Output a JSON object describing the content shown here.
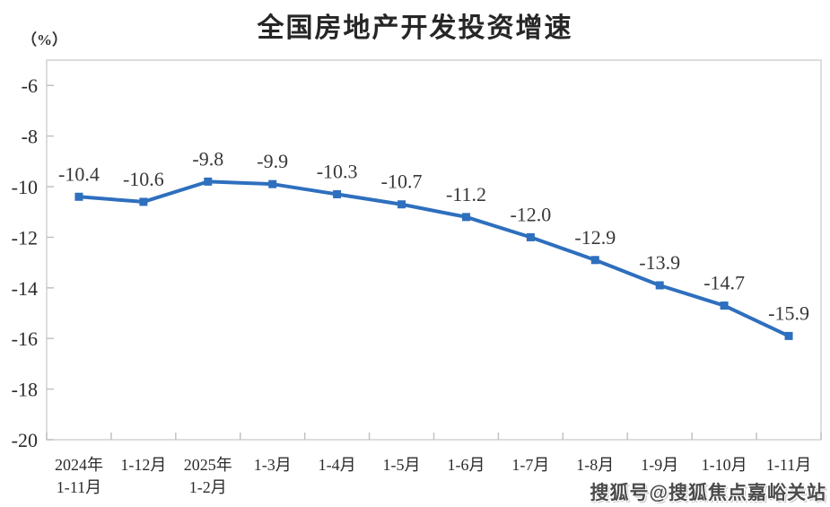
{
  "title": "全国房地产开发投资增速",
  "y_axis_unit": "（%）",
  "watermark": "搜狐号@搜狐焦点嘉峪关站",
  "chart_data": {
    "type": "line",
    "title": "全国房地产开发投资增速",
    "categories": [
      [
        "2024年",
        "1-11月"
      ],
      [
        "1-12月"
      ],
      [
        "2025年",
        "1-2月"
      ],
      [
        "1-3月"
      ],
      [
        "1-4月"
      ],
      [
        "1-5月"
      ],
      [
        "1-6月"
      ],
      [
        "1-7月"
      ],
      [
        "1-8月"
      ],
      [
        "1-9月"
      ],
      [
        "1-10月"
      ],
      [
        "1-11月"
      ]
    ],
    "values": [
      -10.4,
      -10.6,
      -9.8,
      -9.9,
      -10.3,
      -10.7,
      -11.2,
      -12.0,
      -12.9,
      -13.9,
      -14.7,
      -15.9
    ],
    "point_labels": [
      "-10.4",
      "-10.6",
      "-9.8",
      "-9.9",
      "-10.3",
      "-10.7",
      "-11.2",
      "-12.0",
      "-12.9",
      "-13.9",
      "-14.7",
      "-15.9"
    ],
    "xlabel": "",
    "ylabel": "（%）",
    "ylim": [
      -20,
      -5
    ],
    "yticks": [
      "-6",
      "-8",
      "-10",
      "-12",
      "-14",
      "-16",
      "-18",
      "-20"
    ],
    "ytick_values": [
      -6,
      -8,
      -10,
      -12,
      -14,
      -16,
      -18,
      -20
    ],
    "grid": false,
    "legend_position": "none",
    "marker": "square",
    "colors": {
      "line": "#2e6fbe",
      "marker": "#2e6fbe",
      "axis_border": "#d2d2d2",
      "tick": "#c2c2c2",
      "text": "#2b2b2b"
    }
  }
}
